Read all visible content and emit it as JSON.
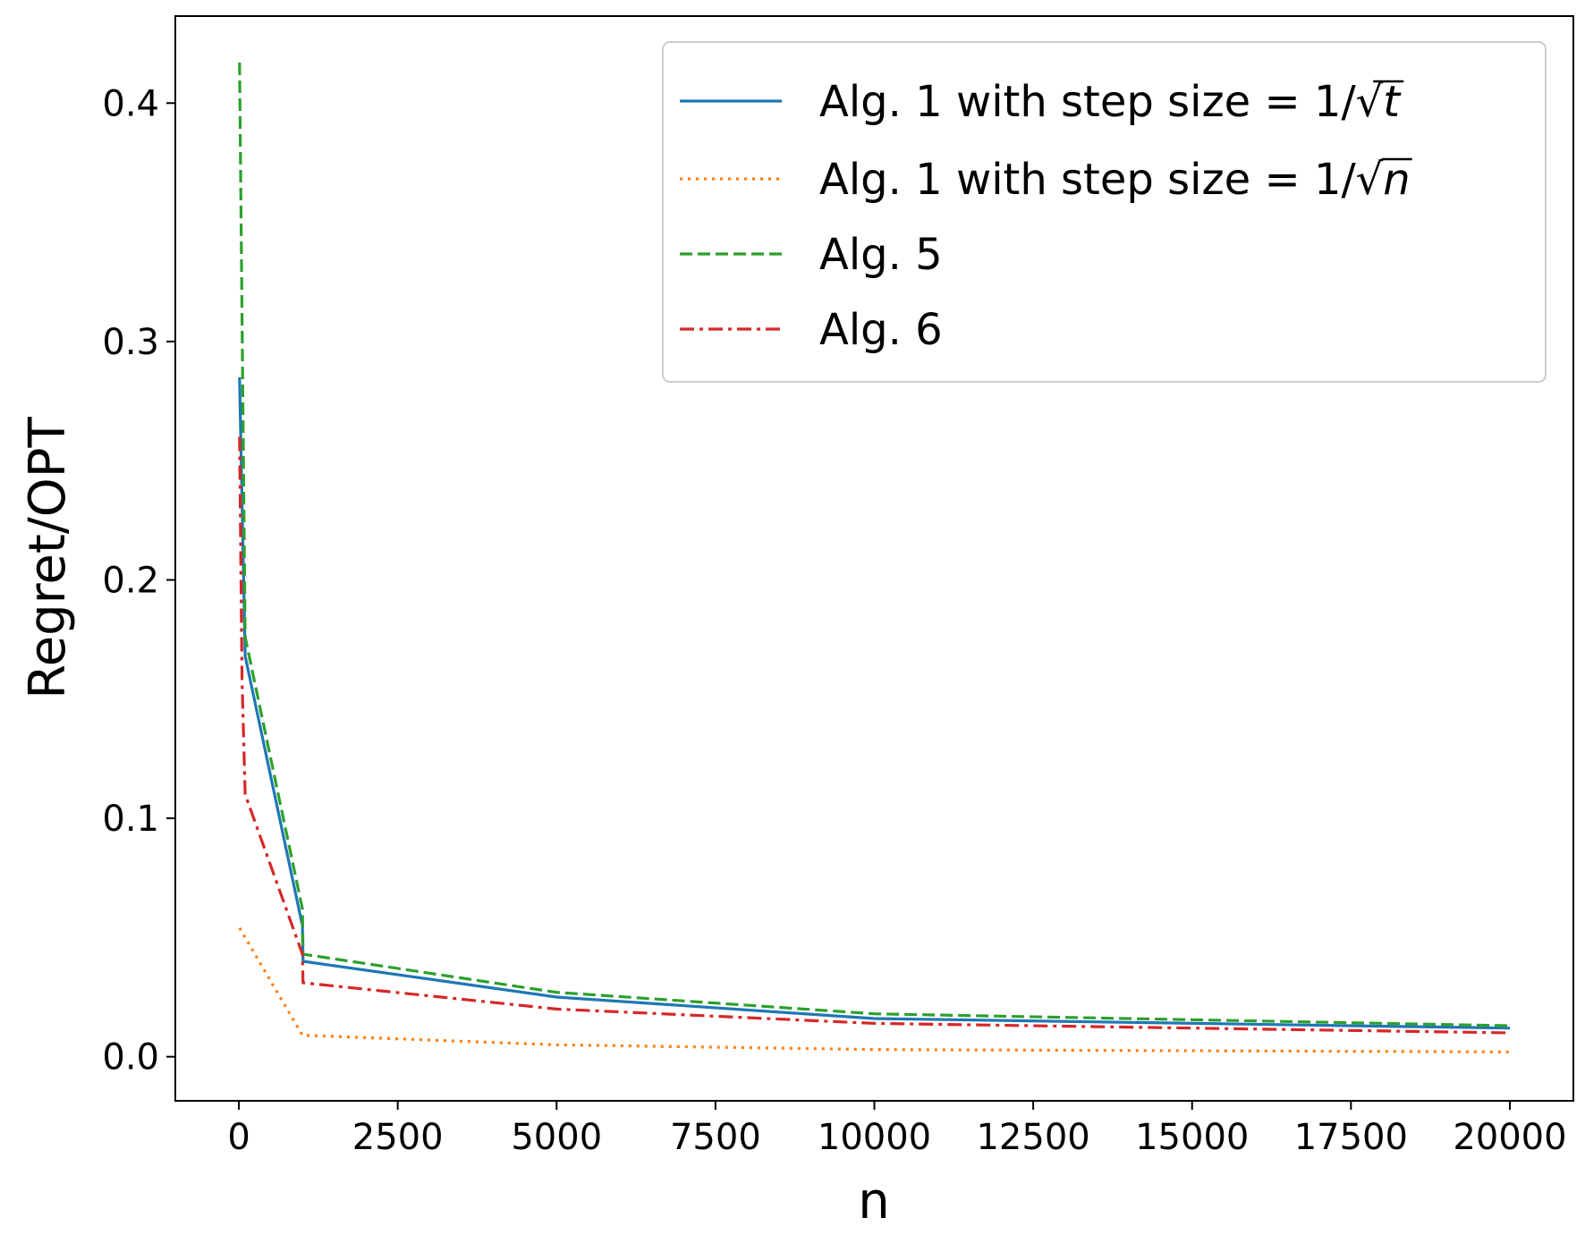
{
  "chart_data": {
    "type": "line",
    "xlabel": "n",
    "ylabel": "Regret/OPT",
    "xlim": [
      -1000,
      21000
    ],
    "ylim": [
      -0.0185,
      0.4365
    ],
    "xticks": [
      0,
      2500,
      5000,
      7500,
      10000,
      12500,
      15000,
      17500,
      20000
    ],
    "xtick_labels": [
      "0",
      "2500",
      "5000",
      "7500",
      "10000",
      "12500",
      "15000",
      "17500",
      "20000"
    ],
    "yticks": [
      0.0,
      0.1,
      0.2,
      0.3,
      0.4
    ],
    "ytick_labels": [
      "0.0",
      "0.1",
      "0.2",
      "0.3",
      "0.4"
    ],
    "grid": false,
    "legend_position": "top-right",
    "series": [
      {
        "name": "Alg. 1 with step size = 1/√t",
        "legend_prefix": "Alg. 1 with step size = 1/√",
        "legend_var": "t",
        "color": "#1f77b4",
        "style": "solid",
        "x": [
          10,
          100,
          1000,
          1010,
          5000,
          10000,
          20000
        ],
        "y": [
          0.285,
          0.168,
          0.055,
          0.04,
          0.025,
          0.016,
          0.012
        ]
      },
      {
        "name": "Alg. 1 with step size = 1/√n",
        "legend_prefix": "Alg. 1 with step size = 1/√",
        "legend_var": "n",
        "color": "#ff7f0e",
        "style": "dotted",
        "x": [
          10,
          100,
          1000,
          5000,
          10000,
          20000
        ],
        "y": [
          0.054,
          0.05,
          0.009,
          0.005,
          0.003,
          0.002
        ]
      },
      {
        "name": "Alg. 5",
        "legend_prefix": "Alg. 5",
        "legend_var": "",
        "color": "#2ca02c",
        "style": "dashed",
        "x": [
          10,
          100,
          1000,
          1010,
          5000,
          10000,
          20000
        ],
        "y": [
          0.417,
          0.176,
          0.062,
          0.043,
          0.027,
          0.018,
          0.013
        ]
      },
      {
        "name": "Alg. 6",
        "legend_prefix": "Alg. 6",
        "legend_var": "",
        "color": "#d62728",
        "style": "dashdot",
        "x": [
          10,
          50,
          100,
          1000,
          1010,
          5000,
          10000,
          20000
        ],
        "y": [
          0.26,
          0.158,
          0.11,
          0.043,
          0.031,
          0.02,
          0.014,
          0.01
        ]
      }
    ]
  }
}
